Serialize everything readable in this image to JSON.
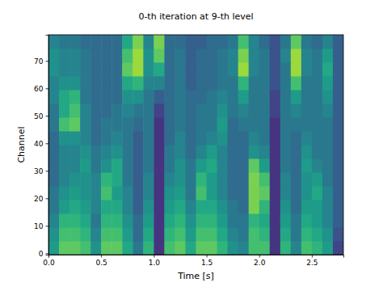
{
  "chart_data": {
    "type": "heatmap",
    "title": "0-th iteration at 9-th level",
    "x_label": "Time [s]",
    "y_label": "Channel",
    "xlim": [
      0,
      2.8
    ],
    "ylim": [
      -0.5,
      79.5
    ],
    "xticks": [
      {
        "value": 0,
        "label": "0.0"
      },
      0.5,
      {
        "value": 1,
        "label": "1.0"
      },
      1.5,
      {
        "value": 2,
        "label": "2.0"
      },
      2.5
    ],
    "yticks": [
      0,
      10,
      20,
      30,
      40,
      50,
      60,
      70
    ],
    "clim": [
      0,
      1
    ],
    "x_edges": [
      0,
      0.1,
      0.2,
      0.3,
      0.4,
      0.5,
      0.6,
      0.7,
      0.8,
      0.9,
      1.0,
      1.1,
      1.2,
      1.3,
      1.4,
      1.5,
      1.6,
      1.7,
      1.8,
      1.9,
      2.0,
      2.1,
      2.2,
      2.3,
      2.4,
      2.5,
      2.6,
      2.7,
      2.8
    ],
    "y_edges": [
      -0.5,
      4.5,
      9.5,
      14.5,
      19.5,
      24.5,
      29.5,
      34.5,
      39.5,
      44.5,
      49.5,
      54.5,
      59.5,
      64.5,
      69.5,
      74.5,
      79.5
    ],
    "cells": [
      [
        0.55,
        0.75,
        0.75,
        0.7,
        0.5,
        0.75,
        0.75,
        0.6,
        0.4,
        0.65,
        0.15,
        0.7,
        0.75,
        0.6,
        0.75,
        0.75,
        0.65,
        0.5,
        0.45,
        0.7,
        0.7,
        0.15,
        0.65,
        0.45,
        0.7,
        0.65,
        0.55,
        0.2
      ],
      [
        0.5,
        0.7,
        0.7,
        0.65,
        0.45,
        0.7,
        0.7,
        0.55,
        0.35,
        0.6,
        0.15,
        0.65,
        0.7,
        0.55,
        0.7,
        0.7,
        0.6,
        0.45,
        0.4,
        0.7,
        0.65,
        0.15,
        0.6,
        0.4,
        0.65,
        0.6,
        0.5,
        0.25
      ],
      [
        0.45,
        0.65,
        0.65,
        0.6,
        0.4,
        0.65,
        0.65,
        0.5,
        0.35,
        0.55,
        0.15,
        0.6,
        0.65,
        0.5,
        0.65,
        0.65,
        0.55,
        0.4,
        0.4,
        0.65,
        0.6,
        0.15,
        0.55,
        0.4,
        0.6,
        0.55,
        0.45,
        0.3
      ],
      [
        0.4,
        0.55,
        0.6,
        0.55,
        0.45,
        0.6,
        0.6,
        0.45,
        0.3,
        0.5,
        0.15,
        0.55,
        0.6,
        0.45,
        0.6,
        0.6,
        0.5,
        0.4,
        0.35,
        0.8,
        0.65,
        0.15,
        0.5,
        0.35,
        0.55,
        0.55,
        0.45,
        0.3
      ],
      [
        0.4,
        0.5,
        0.55,
        0.5,
        0.45,
        0.7,
        0.55,
        0.45,
        0.3,
        0.45,
        0.15,
        0.5,
        0.55,
        0.4,
        0.7,
        0.55,
        0.45,
        0.35,
        0.35,
        0.8,
        0.75,
        0.15,
        0.45,
        0.35,
        0.5,
        0.6,
        0.45,
        0.3
      ],
      [
        0.35,
        0.45,
        0.5,
        0.5,
        0.45,
        0.65,
        0.6,
        0.4,
        0.3,
        0.45,
        0.15,
        0.45,
        0.5,
        0.4,
        0.65,
        0.55,
        0.45,
        0.35,
        0.35,
        0.8,
        0.7,
        0.15,
        0.45,
        0.35,
        0.5,
        0.55,
        0.4,
        0.3
      ],
      [
        0.35,
        0.45,
        0.45,
        0.55,
        0.4,
        0.5,
        0.6,
        0.4,
        0.3,
        0.4,
        0.15,
        0.4,
        0.5,
        0.4,
        0.55,
        0.6,
        0.45,
        0.35,
        0.35,
        0.75,
        0.55,
        0.15,
        0.4,
        0.35,
        0.55,
        0.45,
        0.4,
        0.3
      ],
      [
        0.35,
        0.45,
        0.45,
        0.5,
        0.4,
        0.45,
        0.5,
        0.4,
        0.3,
        0.4,
        0.15,
        0.4,
        0.45,
        0.35,
        0.45,
        0.55,
        0.45,
        0.35,
        0.35,
        0.5,
        0.45,
        0.15,
        0.4,
        0.35,
        0.5,
        0.4,
        0.4,
        0.3
      ],
      [
        0.35,
        0.5,
        0.5,
        0.45,
        0.35,
        0.4,
        0.45,
        0.4,
        0.3,
        0.4,
        0.15,
        0.35,
        0.45,
        0.35,
        0.4,
        0.45,
        0.5,
        0.35,
        0.35,
        0.45,
        0.4,
        0.15,
        0.4,
        0.35,
        0.45,
        0.4,
        0.4,
        0.3
      ],
      [
        0.4,
        0.7,
        0.75,
        0.45,
        0.35,
        0.4,
        0.4,
        0.4,
        0.35,
        0.4,
        0.15,
        0.35,
        0.4,
        0.35,
        0.4,
        0.4,
        0.55,
        0.35,
        0.4,
        0.4,
        0.4,
        0.15,
        0.4,
        0.4,
        0.4,
        0.4,
        0.4,
        0.3
      ],
      [
        0.4,
        0.6,
        0.7,
        0.45,
        0.35,
        0.35,
        0.4,
        0.45,
        0.4,
        0.4,
        0.2,
        0.35,
        0.4,
        0.35,
        0.4,
        0.4,
        0.5,
        0.4,
        0.45,
        0.4,
        0.4,
        0.2,
        0.4,
        0.45,
        0.4,
        0.4,
        0.45,
        0.3
      ],
      [
        0.45,
        0.6,
        0.65,
        0.4,
        0.35,
        0.35,
        0.35,
        0.5,
        0.5,
        0.4,
        0.3,
        0.35,
        0.4,
        0.35,
        0.35,
        0.4,
        0.45,
        0.4,
        0.55,
        0.4,
        0.4,
        0.2,
        0.4,
        0.55,
        0.4,
        0.4,
        0.5,
        0.3
      ],
      [
        0.45,
        0.5,
        0.5,
        0.4,
        0.35,
        0.35,
        0.35,
        0.6,
        0.65,
        0.45,
        0.45,
        0.35,
        0.4,
        0.3,
        0.35,
        0.35,
        0.4,
        0.4,
        0.65,
        0.4,
        0.4,
        0.25,
        0.4,
        0.7,
        0.4,
        0.4,
        0.55,
        0.3
      ],
      [
        0.5,
        0.45,
        0.45,
        0.4,
        0.35,
        0.35,
        0.35,
        0.75,
        0.85,
        0.5,
        0.6,
        0.35,
        0.4,
        0.3,
        0.35,
        0.35,
        0.4,
        0.45,
        0.85,
        0.45,
        0.4,
        0.25,
        0.4,
        0.85,
        0.45,
        0.4,
        0.6,
        0.3
      ],
      [
        0.5,
        0.45,
        0.45,
        0.4,
        0.35,
        0.35,
        0.35,
        0.7,
        0.85,
        0.5,
        0.75,
        0.35,
        0.4,
        0.3,
        0.35,
        0.35,
        0.4,
        0.45,
        0.8,
        0.45,
        0.4,
        0.25,
        0.45,
        0.85,
        0.45,
        0.4,
        0.55,
        0.3
      ],
      [
        0.45,
        0.4,
        0.4,
        0.35,
        0.35,
        0.35,
        0.35,
        0.6,
        0.8,
        0.45,
        0.8,
        0.35,
        0.35,
        0.3,
        0.3,
        0.35,
        0.35,
        0.4,
        0.7,
        0.45,
        0.35,
        0.25,
        0.4,
        0.75,
        0.4,
        0.35,
        0.45,
        0.3
      ]
    ]
  }
}
